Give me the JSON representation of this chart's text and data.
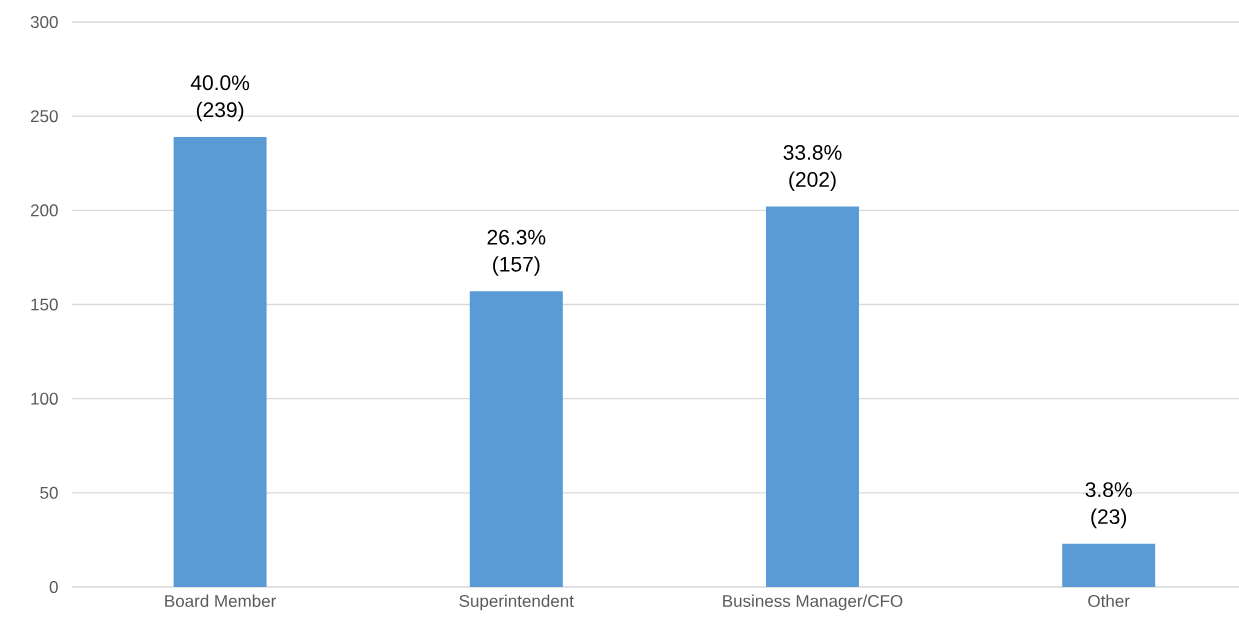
{
  "chart_data": {
    "type": "bar",
    "categories": [
      "Board Member",
      "Superintendent",
      "Business Manager/CFO",
      "Other"
    ],
    "values": [
      239,
      157,
      202,
      23
    ],
    "color": "#5b9bd5",
    "value_labels": [
      "40.0% (239)",
      "26.3% (157)",
      "33.8% (202)",
      "3.8% (23)"
    ],
    "ylim": [
      0,
      300
    ],
    "yticks": [
      0,
      50,
      100,
      150,
      200,
      250,
      300
    ],
    "grid": "y"
  }
}
